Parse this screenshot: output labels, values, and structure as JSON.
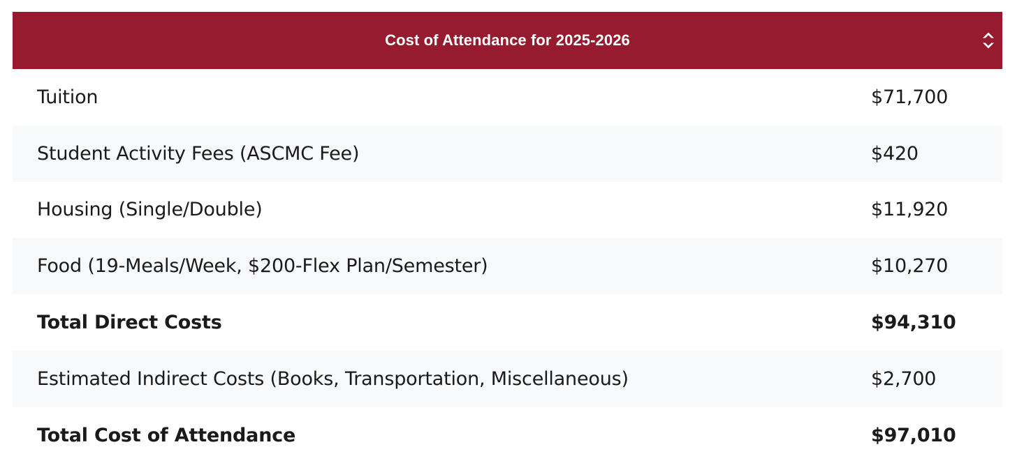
{
  "table": {
    "title": "Cost of Attendance for 2025-2026",
    "sort_icon": "sort-up-down-icon",
    "header_color": "#971b2f",
    "rows": [
      {
        "label": "Tuition",
        "value": "$71,700",
        "bold": false
      },
      {
        "label": "Student Activity Fees (ASCMC Fee)",
        "value": "$420",
        "bold": false
      },
      {
        "label": "Housing (Single/Double)",
        "value": "$11,920",
        "bold": false
      },
      {
        "label": "Food (19-Meals/Week, $200-Flex Plan/Semester)",
        "value": "$10,270",
        "bold": false
      },
      {
        "label": "Total Direct Costs",
        "value": "$94,310",
        "bold": true
      },
      {
        "label": "Estimated Indirect Costs (Books, Transportation, Miscellaneous)",
        "value": "$2,700",
        "bold": false
      },
      {
        "label": "Total Cost of Attendance",
        "value": "$97,010",
        "bold": true
      }
    ]
  }
}
